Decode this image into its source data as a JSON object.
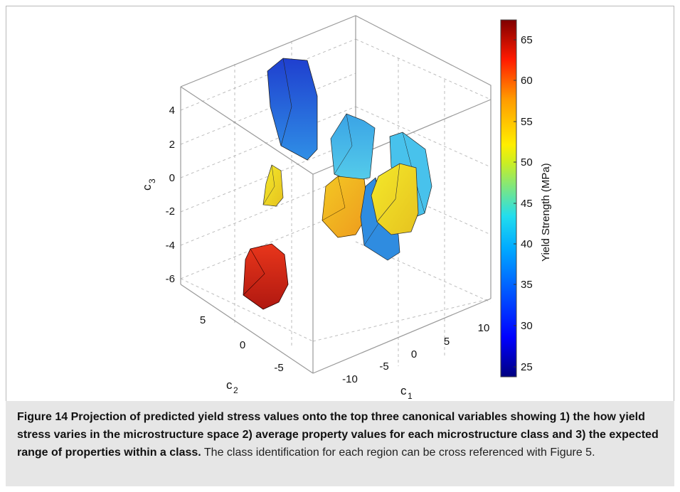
{
  "figure": {
    "c3_label": "c",
    "c3_sub": "3",
    "c2_label": "c",
    "c2_sub": "2",
    "c1_label": "c",
    "c1_sub": "1",
    "c3_ticks": [
      "4",
      "2",
      "0",
      "-2",
      "-4",
      "-6"
    ],
    "c2_ticks": [
      "5",
      "0",
      "-5"
    ],
    "c1_ticks": [
      "-10",
      "-5",
      "0",
      "5",
      "10"
    ],
    "colorbar": {
      "label": "Yield Strength (MPa)",
      "ticks": [
        "65",
        "60",
        "55",
        "50",
        "45",
        "40",
        "35",
        "30",
        "25"
      ],
      "range": [
        24,
        67
      ],
      "colors": [
        "#00007f",
        "#0000ff",
        "#007fff",
        "#00ffff",
        "#7fff7f",
        "#ffff00",
        "#ff7f00",
        "#ff0000",
        "#7f0000"
      ]
    },
    "regions": [
      {
        "name": "top-blue",
        "color": "#2a63d6"
      },
      {
        "name": "small-yellow",
        "color": "#e8cf2a"
      },
      {
        "name": "red",
        "color": "#d42a14"
      },
      {
        "name": "center-cyan",
        "color": "#36b3e8"
      },
      {
        "name": "center-orange",
        "color": "#f2b021"
      },
      {
        "name": "right-blue",
        "color": "#2f8ce0"
      },
      {
        "name": "right-cyan",
        "color": "#48c2ec"
      },
      {
        "name": "right-yellow",
        "color": "#f1dc26"
      }
    ]
  },
  "caption": {
    "bold": "Figure 14 Projection of predicted yield stress values onto the top three canonical variables showing 1) the how yield stress varies in the microstructure space 2) average property values for each microstructure class and 3) the expected range of properties within a class.",
    "normal": " The class identification for each region can be cross referenced with Figure 5."
  }
}
